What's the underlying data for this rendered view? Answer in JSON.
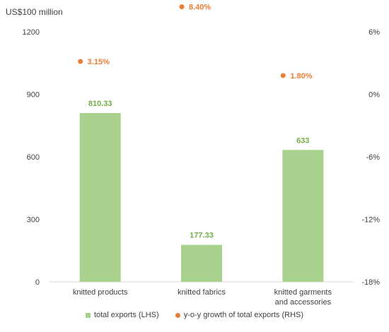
{
  "unit_label": "US$100 million",
  "colors": {
    "bar": "#a9d18e",
    "dot": "#ed7d31",
    "bar_label": "#70ad47",
    "dot_label": "#ed7d31",
    "axis_text": "#404040"
  },
  "chart_data": {
    "type": "bar",
    "categories": [
      "knitted products",
      "knitted fabrics",
      "knitted garments and accessories"
    ],
    "series": [
      {
        "name": "total exports (LHS)",
        "axis": "left",
        "kind": "bar",
        "values": [
          810.33,
          177.33,
          633
        ],
        "labels": [
          "810.33",
          "177.33",
          "633"
        ]
      },
      {
        "name": "y-o-y growth of total exports (RHS)",
        "axis": "right",
        "kind": "scatter",
        "values": [
          3.15,
          8.4,
          1.8
        ],
        "labels": [
          "3.15%",
          "8.40%",
          "1.80%"
        ]
      }
    ],
    "left_axis": {
      "min": 0,
      "max": 1200,
      "ticks": [
        0,
        300,
        600,
        900,
        1200
      ],
      "tick_labels": [
        "0",
        "300",
        "600",
        "900",
        "1200"
      ]
    },
    "right_axis": {
      "min": -18,
      "max": 6,
      "ticks": [
        -18,
        -12,
        -6,
        0,
        6
      ],
      "tick_labels": [
        "-18%",
        "-12%",
        "-6%",
        "0%",
        "6%"
      ]
    },
    "grid": false,
    "legend_position": "bottom"
  }
}
